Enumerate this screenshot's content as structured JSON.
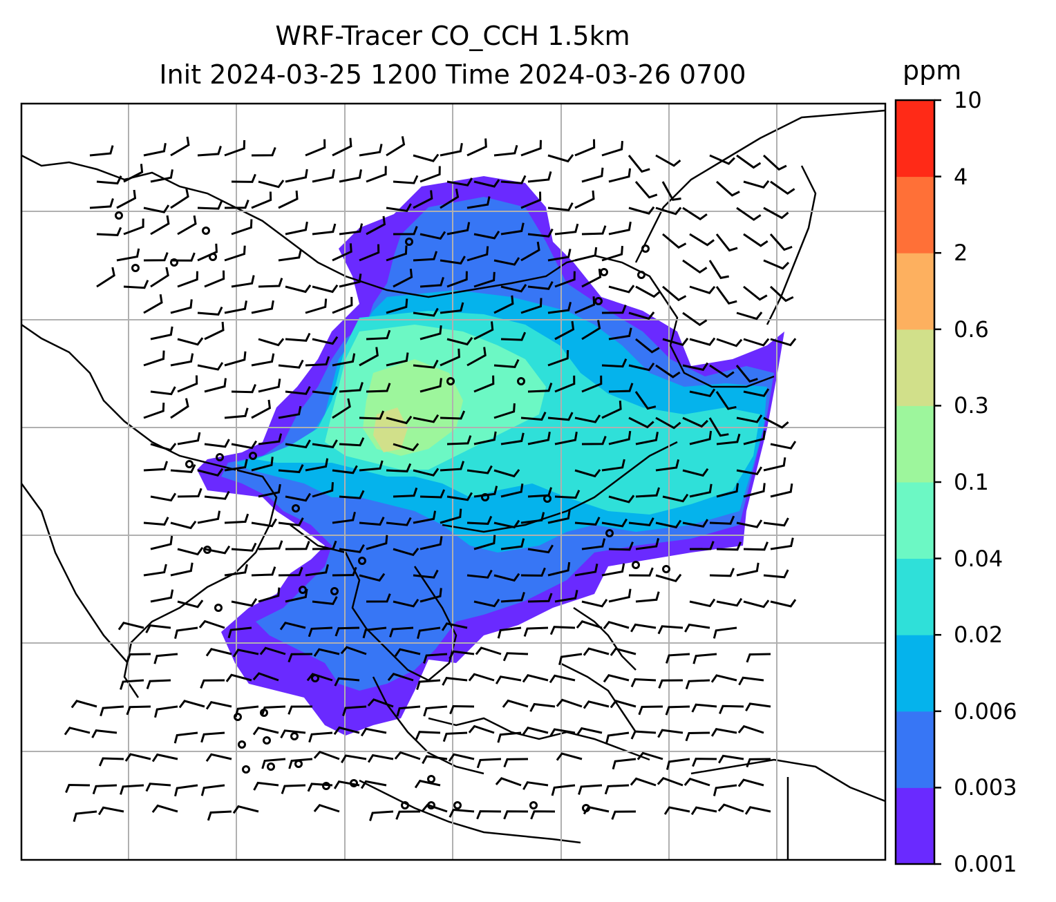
{
  "title": {
    "line1": "WRF-Tracer CO_CCH 1.5km",
    "line2": "Init 2024-03-25 1200 Time 2024-03-26 0700"
  },
  "colorbar": {
    "unit": "ppm",
    "levels": [
      "0.001",
      "0.003",
      "0.006",
      "0.02",
      "0.04",
      "0.1",
      "0.3",
      "0.6",
      "2",
      "4",
      "10"
    ],
    "colors": [
      "#6a2aff",
      "#3776f5",
      "#05b3ec",
      "#2fe0d9",
      "#6cf8c4",
      "#9df69c",
      "#d1e08a",
      "#fdb05f",
      "#ff7037",
      "#ff2a17"
    ]
  },
  "map": {
    "gridlines": 7,
    "field": "CO_CCH tracer concentration with wind barbs"
  }
}
